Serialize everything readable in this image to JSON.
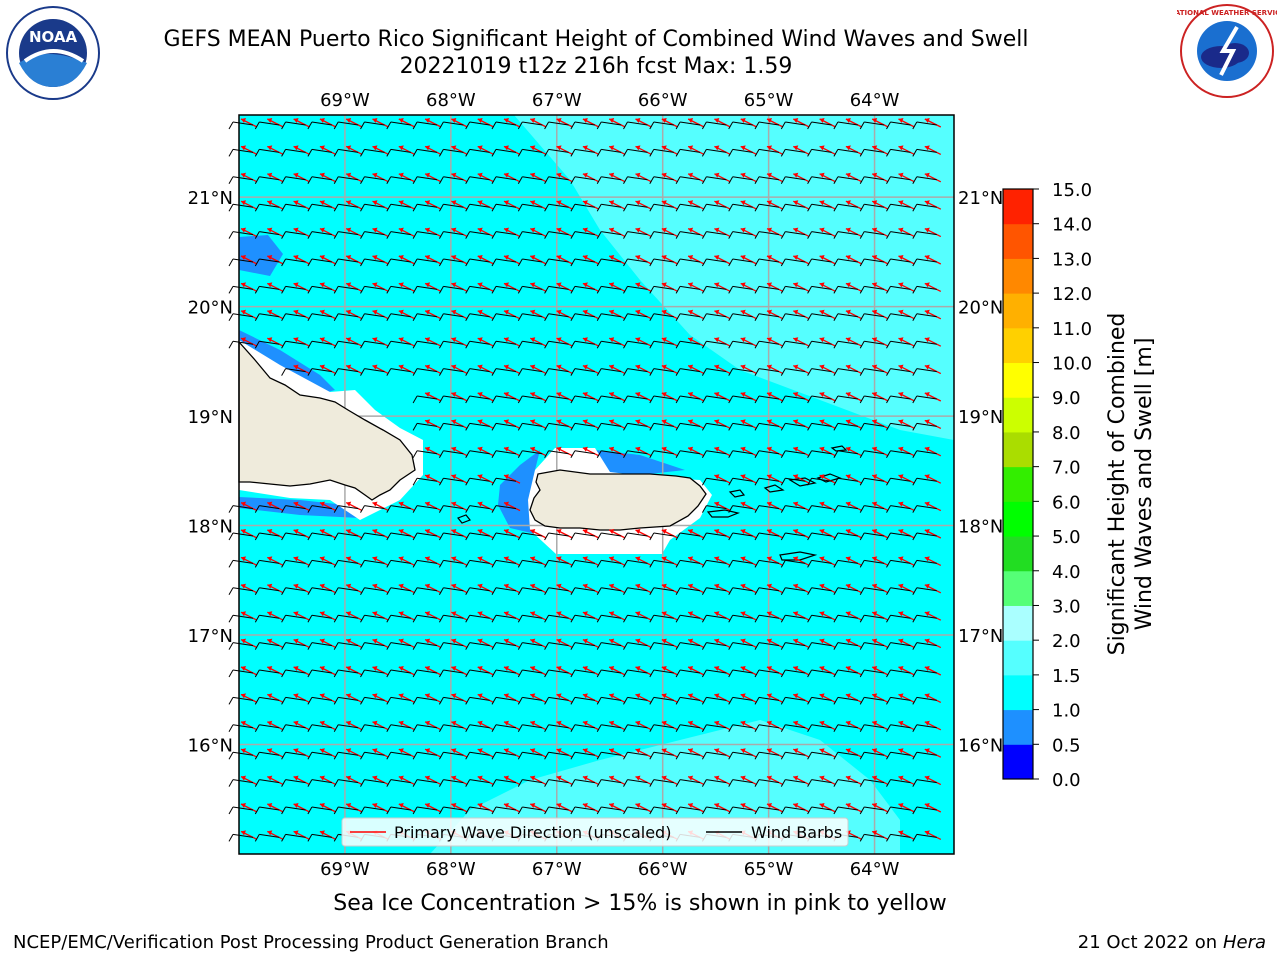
{
  "title": {
    "line1": "GEFS MEAN Puerto Rico Significant Height of Combined Wind Waves and Swell",
    "line2": "20221019 t12z 216h fcst   Max: 1.59"
  },
  "logos": {
    "left": {
      "icon": "noaa-logo",
      "text": "NOAA"
    },
    "right": {
      "icon": "nws-logo",
      "text": "NATIONAL WEATHER SERVICE"
    }
  },
  "map": {
    "lon_labels": [
      "69°W",
      "68°W",
      "67°W",
      "66°W",
      "65°W",
      "64°W"
    ],
    "lat_labels": [
      "21°N",
      "20°N",
      "19°N",
      "18°N",
      "17°N",
      "16°N"
    ],
    "extent": {
      "lon_min": -70.0,
      "lon_max": -63.25,
      "lat_min": 15.0,
      "lat_max": 21.75
    },
    "ocean_color": "#00ffff",
    "light_region_color": "#55ffff",
    "low_region_color": "#1e90ff",
    "land_color": "#efebdc",
    "arrow_color": "#ff0000",
    "barb_color": "#000000"
  },
  "legend": {
    "wave_direction": "Primary Wave Direction (unscaled)",
    "wind_barbs": "Wind Barbs"
  },
  "colorbar": {
    "label_line1": "Significant Height of Combined",
    "label_line2": "Wind Waves and Swell [m]",
    "ticks": [
      "0.0",
      "0.5",
      "1.0",
      "1.5",
      "2.0",
      "3.0",
      "4.0",
      "5.0",
      "6.0",
      "7.0",
      "8.0",
      "9.0",
      "10.0",
      "11.0",
      "12.0",
      "13.0",
      "14.0",
      "15.0"
    ],
    "colors": [
      "#0000ff",
      "#1e90ff",
      "#00ffff",
      "#55ffff",
      "#aaffff",
      "#55ff77",
      "#22dd22",
      "#00ff00",
      "#33ee00",
      "#aadd00",
      "#ccff00",
      "#ffff00",
      "#ffd000",
      "#ffb000",
      "#ff8800",
      "#ff5500",
      "#ff2200"
    ]
  },
  "note": "Sea Ice Concentration > 15% is shown in pink to yellow",
  "footer": {
    "left": "NCEP/EMC/Verification Post Processing Product Generation Branch",
    "right_date": "21 Oct 2022 on ",
    "right_host": "Hera"
  }
}
